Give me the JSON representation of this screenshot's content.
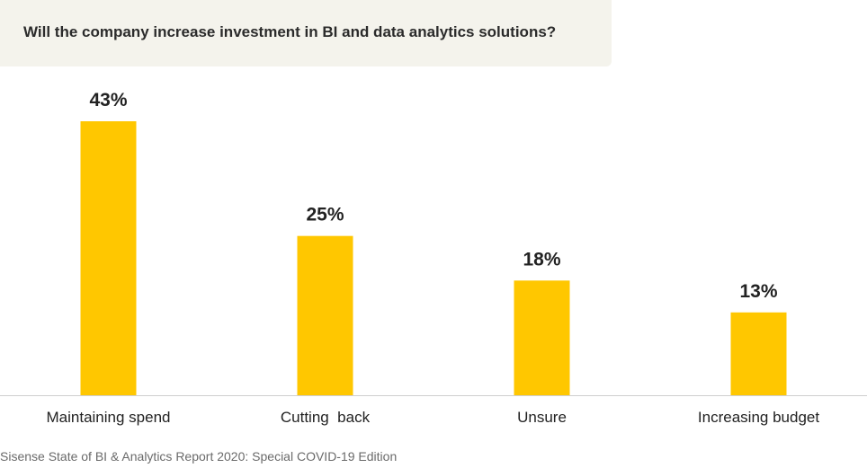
{
  "chart_data": {
    "type": "bar",
    "title": "Will the company increase investment in BI and data analytics solutions?",
    "categories": [
      "Maintaining spend",
      "Cutting  back",
      "Unsure",
      "Increasing budget"
    ],
    "values": [
      43,
      25,
      18,
      13
    ],
    "data_labels": [
      "43%",
      "25%",
      "18%",
      "13%"
    ],
    "ylim": [
      0,
      43
    ],
    "grid": false,
    "colors": {
      "bar": "#ffc700",
      "baseline": "#cfcfcf",
      "label": "#222222",
      "title_background": "#f4f3ec"
    }
  },
  "source": "Sisense State of BI & Analytics Report 2020: Special COVID-19 Edition"
}
